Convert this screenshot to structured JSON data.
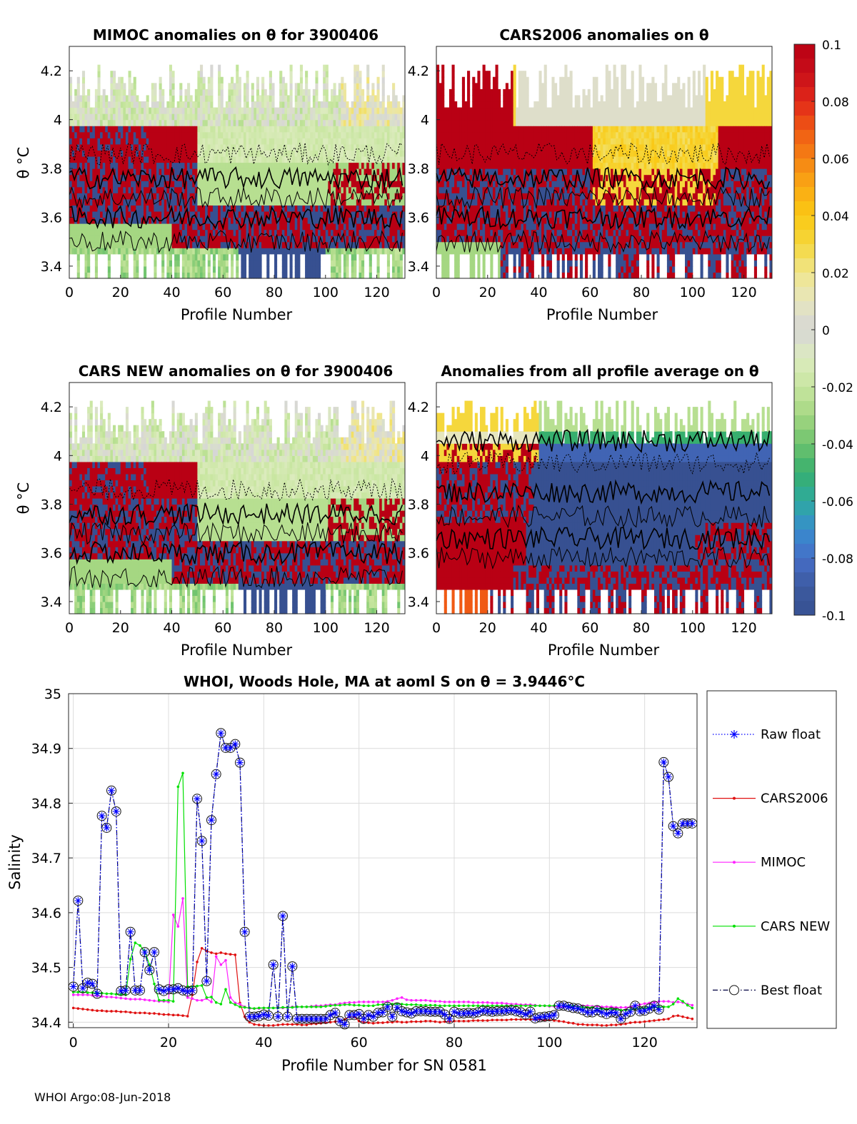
{
  "footer": "WHOI Argo:08-Jun-2018",
  "colorbar": {
    "ticks": [
      "0.1",
      "0.08",
      "0.06",
      "0.04",
      "0.02",
      "0",
      "-0.02",
      "-0.04",
      "-0.06",
      "-0.08",
      "-0.1"
    ],
    "range": [
      -0.1,
      0.1
    ]
  },
  "chart_data": [
    {
      "type": "heatmap",
      "title": "MIMOC anomalies on θ  for 3900406",
      "xlabel": "Profile Number",
      "ylabel": "θ °C",
      "xlim": [
        0,
        131
      ],
      "ylim": [
        3.35,
        4.3
      ],
      "xticks": [
        0,
        20,
        40,
        60,
        80,
        100,
        120
      ],
      "yticks": [
        3.4,
        3.6,
        3.8,
        4,
        4.2
      ],
      "ytick_labels": [
        "3.4",
        "3.6",
        "3.8",
        "4",
        "4.2"
      ],
      "pattern": "mimoc"
    },
    {
      "type": "heatmap",
      "title": "CARS2006 anomalies on θ",
      "xlabel": "Profile Number",
      "ylabel": "",
      "xlim": [
        0,
        131
      ],
      "ylim": [
        3.35,
        4.3
      ],
      "xticks": [
        0,
        20,
        40,
        60,
        80,
        100,
        120
      ],
      "yticks": [
        3.4,
        3.6,
        3.8,
        4,
        4.2
      ],
      "ytick_labels": [
        "3.4",
        "3.6",
        "3.8",
        "4",
        "4.2"
      ],
      "pattern": "cars2006"
    },
    {
      "type": "heatmap",
      "title": "CARS NEW anomalies on θ for 3900406",
      "xlabel": "Profile Number",
      "ylabel": "θ °C",
      "xlim": [
        0,
        131
      ],
      "ylim": [
        3.35,
        4.3
      ],
      "xticks": [
        0,
        20,
        40,
        60,
        80,
        100,
        120
      ],
      "yticks": [
        3.4,
        3.6,
        3.8,
        4,
        4.2
      ],
      "ytick_labels": [
        "3.4",
        "3.6",
        "3.8",
        "4",
        "4.2"
      ],
      "pattern": "carsnew"
    },
    {
      "type": "heatmap",
      "title": "Anomalies from all profile average on θ",
      "xlabel": "Profile Number",
      "ylabel": "",
      "xlim": [
        0,
        131
      ],
      "ylim": [
        3.35,
        4.3
      ],
      "xticks": [
        0,
        20,
        40,
        60,
        80,
        100,
        120
      ],
      "yticks": [
        3.4,
        3.6,
        3.8,
        4,
        4.2
      ],
      "ytick_labels": [
        "3.4",
        "3.6",
        "3.8",
        "4",
        "4.2"
      ],
      "pattern": "average"
    },
    {
      "type": "line",
      "title": "WHOI, Woods Hole, MA at aoml S on θ = 3.9446°C",
      "xlabel": "Profile Number for SN 0581",
      "ylabel": "Salinity",
      "xlim": [
        -1,
        131
      ],
      "ylim": [
        34.39,
        35.0
      ],
      "xticks": [
        0,
        20,
        40,
        60,
        80,
        100,
        120
      ],
      "yticks": [
        34.4,
        34.5,
        34.6,
        34.7,
        34.8,
        34.9,
        35
      ],
      "ytick_labels": [
        "34.4",
        "34.5",
        "34.6",
        "34.7",
        "34.8",
        "34.9",
        "35"
      ],
      "x": [
        0,
        1,
        2,
        3,
        4,
        5,
        6,
        7,
        8,
        9,
        10,
        11,
        12,
        13,
        14,
        15,
        16,
        17,
        18,
        19,
        20,
        21,
        22,
        23,
        24,
        25,
        26,
        27,
        28,
        29,
        30,
        31,
        32,
        33,
        34,
        35,
        36,
        37,
        38,
        39,
        40,
        41,
        42,
        43,
        44,
        45,
        46,
        47,
        48,
        49,
        50,
        51,
        52,
        53,
        54,
        55,
        56,
        57,
        58,
        59,
        60,
        61,
        62,
        63,
        64,
        65,
        66,
        67,
        68,
        69,
        70,
        71,
        72,
        73,
        74,
        75,
        76,
        77,
        78,
        79,
        80,
        81,
        82,
        83,
        84,
        85,
        86,
        87,
        88,
        89,
        90,
        91,
        92,
        93,
        94,
        95,
        96,
        97,
        98,
        99,
        100,
        101,
        102,
        103,
        104,
        105,
        106,
        107,
        108,
        109,
        110,
        111,
        112,
        113,
        114,
        115,
        116,
        117,
        118,
        119,
        120,
        121,
        122,
        123,
        124,
        125,
        126,
        127,
        128,
        129,
        130
      ],
      "series": [
        {
          "name": "Raw float",
          "style": "dotted-star",
          "color": "#0000ff",
          "values": [
            34.465,
            34.622,
            34.462,
            34.472,
            34.47,
            34.452,
            34.777,
            34.755,
            34.823,
            34.785,
            34.457,
            34.458,
            34.565,
            34.458,
            34.458,
            34.528,
            34.495,
            34.528,
            34.46,
            34.457,
            34.46,
            34.46,
            34.462,
            34.458,
            34.456,
            34.458,
            34.808,
            34.731,
            34.475,
            34.769,
            34.853,
            34.928,
            34.901,
            34.901,
            34.908,
            34.874,
            34.565,
            34.41,
            34.41,
            34.411,
            34.414,
            34.412,
            34.505,
            34.41,
            34.594,
            34.41,
            34.502,
            34.406,
            34.406,
            34.406,
            34.406,
            34.406,
            34.406,
            34.406,
            34.413,
            34.417,
            34.402,
            34.396,
            34.413,
            34.413,
            34.415,
            34.406,
            34.413,
            34.41,
            34.417,
            34.418,
            34.428,
            34.41,
            34.427,
            34.42,
            34.418,
            34.416,
            34.42,
            34.42,
            34.42,
            34.419,
            34.419,
            34.419,
            34.414,
            34.406,
            34.419,
            34.416,
            34.416,
            34.417,
            34.416,
            34.418,
            34.421,
            34.42,
            34.419,
            34.42,
            34.42,
            34.421,
            34.422,
            34.42,
            34.418,
            34.414,
            34.419,
            34.407,
            34.409,
            34.41,
            34.411,
            34.413,
            34.43,
            34.43,
            34.428,
            34.426,
            34.425,
            34.422,
            34.418,
            34.418,
            34.422,
            34.418,
            34.415,
            34.418,
            34.417,
            34.406,
            34.415,
            34.419,
            34.43,
            34.42,
            34.421,
            34.425,
            34.43,
            34.423,
            34.875,
            34.848,
            34.758,
            34.745,
            34.763,
            34.763,
            34.763
          ]
        },
        {
          "name": "CARS2006",
          "style": "solid-dot",
          "color": "#e01010",
          "values": [
            34.426,
            34.425,
            34.424,
            34.423,
            34.422,
            34.421,
            34.421,
            34.42,
            34.42,
            34.42,
            34.419,
            34.419,
            34.418,
            34.417,
            34.417,
            34.417,
            34.416,
            34.416,
            34.415,
            34.414,
            34.414,
            34.413,
            34.413,
            34.412,
            34.411,
            34.45,
            34.51,
            34.535,
            34.53,
            34.527,
            34.525,
            34.527,
            34.525,
            34.524,
            34.523,
            34.435,
            34.41,
            34.4,
            34.396,
            34.395,
            34.394,
            34.394,
            34.394,
            34.395,
            34.396,
            34.396,
            34.396,
            34.396,
            34.395,
            34.395,
            34.397,
            34.397,
            34.398,
            34.399,
            34.4,
            34.401,
            34.402,
            34.405,
            34.41,
            34.41,
            34.402,
            34.4,
            34.399,
            34.398,
            34.399,
            34.399,
            34.4,
            34.4,
            34.401,
            34.4,
            34.4,
            34.401,
            34.401,
            34.401,
            34.402,
            34.402,
            34.401,
            34.4,
            34.401,
            34.401,
            34.402,
            34.402,
            34.402,
            34.402,
            34.403,
            34.403,
            34.403,
            34.403,
            34.404,
            34.404,
            34.404,
            34.404,
            34.405,
            34.405,
            34.405,
            34.405,
            34.405,
            34.405,
            34.405,
            34.404,
            34.404,
            34.403,
            34.402,
            34.401,
            34.399,
            34.398,
            34.396,
            34.396,
            34.395,
            34.395,
            34.395,
            34.394,
            34.394,
            34.395,
            34.395,
            34.396,
            34.397,
            34.399,
            34.4,
            34.4,
            34.401,
            34.402,
            34.403,
            34.404,
            34.405,
            34.406,
            34.411,
            34.412,
            34.41,
            34.408,
            34.406
          ]
        },
        {
          "name": "MIMOC",
          "style": "solid-dot",
          "color": "#ff22ff",
          "values": [
            34.45,
            34.45,
            34.45,
            34.45,
            34.449,
            34.448,
            34.447,
            34.446,
            34.446,
            34.445,
            34.444,
            34.443,
            34.442,
            34.442,
            34.442,
            34.441,
            34.44,
            34.439,
            34.438,
            34.438,
            34.437,
            34.596,
            34.575,
            34.626,
            34.445,
            34.443,
            34.44,
            34.44,
            34.443,
            34.437,
            34.52,
            34.505,
            34.513,
            34.445,
            34.435,
            34.433,
            34.428,
            34.425,
            34.425,
            34.425,
            34.426,
            34.426,
            34.426,
            34.426,
            34.426,
            34.427,
            34.428,
            34.428,
            34.428,
            34.428,
            34.429,
            34.43,
            34.43,
            34.431,
            34.432,
            34.432,
            34.434,
            34.435,
            34.436,
            34.436,
            34.437,
            34.437,
            34.437,
            34.437,
            34.437,
            34.437,
            34.438,
            34.44,
            34.443,
            34.445,
            34.441,
            34.44,
            34.44,
            34.44,
            34.44,
            34.439,
            34.438,
            34.438,
            34.437,
            34.437,
            34.437,
            34.437,
            34.437,
            34.437,
            34.436,
            34.436,
            34.436,
            34.436,
            34.435,
            34.435,
            34.435,
            34.434,
            34.433,
            34.433,
            34.432,
            34.432,
            34.432,
            34.431,
            34.43,
            34.43,
            34.429,
            34.429,
            34.428,
            34.428,
            34.428,
            34.428,
            34.429,
            34.43,
            34.43,
            34.429,
            34.429,
            34.428,
            34.428,
            34.428,
            34.427,
            34.427,
            34.427,
            34.428,
            34.43,
            34.432,
            34.434,
            34.435,
            34.436,
            34.438,
            34.438,
            34.438,
            34.436,
            34.437,
            34.436,
            34.433,
            34.431
          ]
        },
        {
          "name": "CARS NEW",
          "style": "solid-dot",
          "color": "#00e000",
          "values": [
            34.455,
            34.455,
            34.455,
            34.454,
            34.454,
            34.453,
            34.453,
            34.452,
            34.452,
            34.451,
            34.451,
            34.45,
            34.515,
            34.545,
            34.54,
            34.53,
            34.505,
            34.47,
            34.44,
            34.44,
            34.44,
            34.438,
            34.83,
            34.855,
            34.465,
            34.465,
            34.466,
            34.467,
            34.445,
            34.446,
            34.436,
            34.433,
            34.46,
            34.436,
            34.432,
            34.428,
            34.427,
            34.426,
            34.425,
            34.426,
            34.426,
            34.426,
            34.426,
            34.426,
            34.427,
            34.427,
            34.427,
            34.428,
            34.428,
            34.428,
            34.428,
            34.428,
            34.428,
            34.429,
            34.43,
            34.431,
            34.431,
            34.432,
            34.432,
            34.431,
            34.431,
            34.43,
            34.43,
            34.43,
            34.432,
            34.432,
            34.432,
            34.433,
            34.433,
            34.433,
            34.432,
            34.432,
            34.432,
            34.431,
            34.431,
            34.431,
            34.431,
            34.43,
            34.43,
            34.43,
            34.43,
            34.43,
            34.43,
            34.43,
            34.43,
            34.43,
            34.43,
            34.43,
            34.43,
            34.43,
            34.43,
            34.43,
            34.43,
            34.43,
            34.43,
            34.43,
            34.43,
            34.43,
            34.43,
            34.43,
            34.43,
            34.43,
            34.43,
            34.43,
            34.43,
            34.43,
            34.428,
            34.427,
            34.427,
            34.427,
            34.425,
            34.424,
            34.424,
            34.424,
            34.423,
            34.422,
            34.422,
            34.423,
            34.424,
            34.425,
            34.426,
            34.427,
            34.427,
            34.428,
            34.428,
            34.428,
            34.433,
            34.443,
            34.438,
            34.431,
            34.426
          ]
        },
        {
          "name": "Best float",
          "style": "dashdot-circle",
          "color": "#000040",
          "values": [
            34.465,
            34.622,
            34.462,
            34.472,
            34.47,
            34.452,
            34.777,
            34.755,
            34.823,
            34.785,
            34.457,
            34.458,
            34.565,
            34.458,
            34.458,
            34.528,
            34.495,
            34.528,
            34.46,
            34.457,
            34.46,
            34.46,
            34.462,
            34.458,
            34.456,
            34.458,
            34.808,
            34.731,
            34.475,
            34.769,
            34.853,
            34.928,
            34.901,
            34.901,
            34.908,
            34.874,
            34.565,
            34.41,
            34.41,
            34.411,
            34.414,
            34.412,
            34.505,
            34.41,
            34.594,
            34.41,
            34.502,
            34.406,
            34.406,
            34.406,
            34.406,
            34.406,
            34.406,
            34.406,
            34.413,
            34.417,
            34.402,
            34.396,
            34.413,
            34.413,
            34.415,
            34.406,
            34.413,
            34.41,
            34.417,
            34.418,
            34.428,
            34.41,
            34.427,
            34.42,
            34.418,
            34.416,
            34.42,
            34.42,
            34.42,
            34.419,
            34.419,
            34.419,
            34.414,
            34.406,
            34.419,
            34.416,
            34.416,
            34.417,
            34.416,
            34.418,
            34.421,
            34.42,
            34.419,
            34.42,
            34.42,
            34.421,
            34.422,
            34.42,
            34.418,
            34.414,
            34.419,
            34.407,
            34.409,
            34.41,
            34.411,
            34.413,
            34.43,
            34.43,
            34.428,
            34.426,
            34.425,
            34.422,
            34.418,
            34.418,
            34.422,
            34.418,
            34.415,
            34.418,
            34.417,
            34.406,
            34.415,
            34.419,
            34.43,
            34.42,
            34.421,
            34.425,
            34.43,
            34.423,
            34.875,
            34.848,
            34.758,
            34.745,
            34.763,
            34.763,
            34.763
          ]
        }
      ],
      "legend": [
        "Raw float",
        "CARS2006",
        "MIMOC",
        "CARS NEW",
        "Best float"
      ],
      "legend_position": "right-outside",
      "grid": true
    }
  ]
}
